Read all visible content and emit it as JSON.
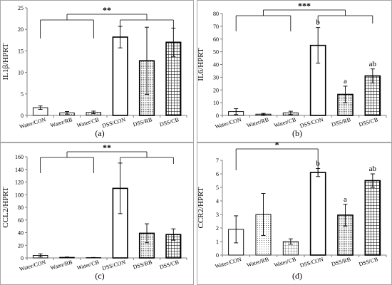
{
  "chart_data": [
    {
      "type": "bar",
      "panel_label": "(a)",
      "ylabel": "IL1β/HPRT",
      "ylim": [
        0,
        25
      ],
      "yticks": [
        "0",
        "5",
        "10",
        "15",
        "20",
        "25"
      ],
      "categories": [
        "Water/CON",
        "Water/RB",
        "Water/CB",
        "DSS/CON",
        "DSS/RB",
        "DSS/CB"
      ],
      "values": [
        1.8,
        0.6,
        0.7,
        18.2,
        12.7,
        17.0
      ],
      "errors": [
        0.4,
        0.3,
        0.3,
        2.5,
        7.8,
        3.3
      ],
      "group_letters": [
        "",
        "",
        "",
        "",
        "",
        ""
      ],
      "significance": "**"
    },
    {
      "type": "bar",
      "panel_label": "(b)",
      "ylabel": "IL6/HPRT",
      "ylim": [
        0,
        80
      ],
      "yticks": [
        "0",
        "10",
        "20",
        "30",
        "40",
        "50",
        "60",
        "70",
        "80"
      ],
      "categories": [
        "Water/CON",
        "Water/RB",
        "Water/CB",
        "DSS/CON",
        "DSS/RB",
        "DSS/CB"
      ],
      "values": [
        3.0,
        1.0,
        2.0,
        55.0,
        16.5,
        31.0
      ],
      "errors": [
        2.3,
        0.6,
        1.3,
        14.0,
        6.5,
        5.5
      ],
      "group_letters": [
        "",
        "",
        "",
        "b",
        "a",
        "ab"
      ],
      "significance": "***"
    },
    {
      "type": "bar",
      "panel_label": "(c)",
      "ylabel": "CCL2/HPRT",
      "ylim": [
        0,
        160
      ],
      "yticks": [
        "0",
        "20",
        "40",
        "60",
        "80",
        "100",
        "120",
        "140",
        "160"
      ],
      "categories": [
        "Water/CON",
        "Water/RB",
        "Water/CB",
        "DSS/CON",
        "DSS/RB",
        "DSS/CB"
      ],
      "values": [
        4.0,
        1.0,
        0.5,
        110.0,
        39.0,
        37.0
      ],
      "errors": [
        2.5,
        0.5,
        0.3,
        40.0,
        15.0,
        9.0
      ],
      "group_letters": [
        "",
        "",
        "",
        "",
        "",
        ""
      ],
      "significance": "**"
    },
    {
      "type": "bar",
      "panel_label": "(d)",
      "ylabel": "CCR2/HPRT",
      "ylim": [
        0,
        7
      ],
      "yticks": [
        "0",
        "1",
        "2",
        "3",
        "4",
        "5",
        "6",
        "7"
      ],
      "categories": [
        "Water/CON",
        "Water/RB",
        "Water/CB",
        "DSS/CON",
        "DSS/RB",
        "DSS/CB"
      ],
      "values": [
        1.9,
        3.0,
        1.0,
        6.1,
        2.95,
        5.5
      ],
      "errors": [
        1.0,
        1.55,
        0.2,
        0.3,
        0.8,
        0.5
      ],
      "group_letters": [
        "",
        "",
        "",
        "b",
        "a",
        "ab"
      ],
      "significance": "*"
    }
  ],
  "colors": {
    "bar_fill": "#ffffff",
    "bar_stroke": "#000000",
    "axis": "#7f7f7f",
    "frame": "#a6a6a6"
  },
  "bar_patterns": [
    "plain",
    "dots",
    "grid-fine",
    "plain-thick",
    "dots-dense",
    "grid-thick"
  ]
}
